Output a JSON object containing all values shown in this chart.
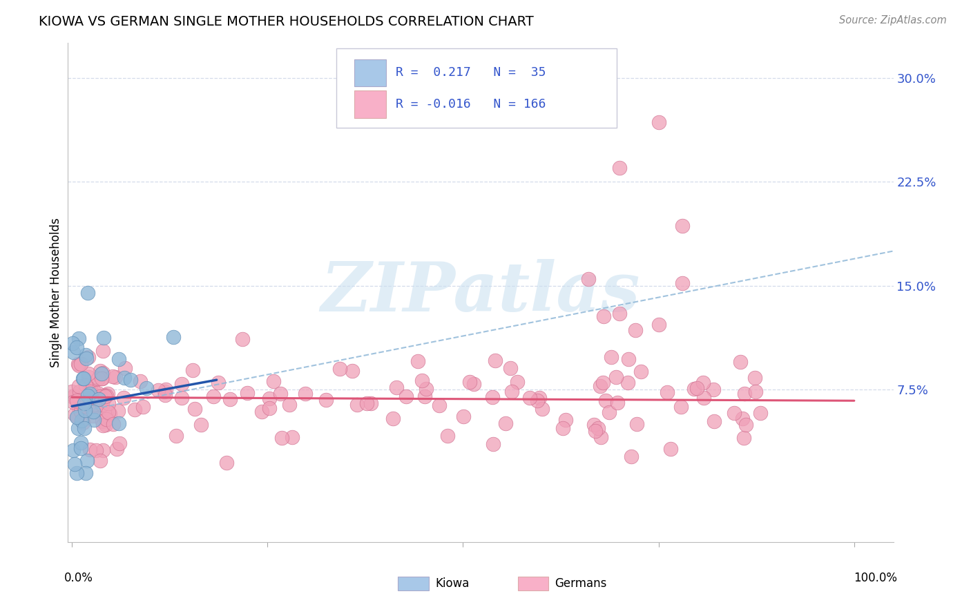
{
  "title": "KIOWA VS GERMAN SINGLE MOTHER HOUSEHOLDS CORRELATION CHART",
  "source": "Source: ZipAtlas.com",
  "ylabel": "Single Mother Households",
  "yticks": [
    0.075,
    0.15,
    0.225,
    0.3
  ],
  "ytick_labels": [
    "7.5%",
    "15.0%",
    "22.5%",
    "30.0%"
  ],
  "xlim": [
    -0.005,
    1.05
  ],
  "ylim": [
    -0.035,
    0.325
  ],
  "kiowa_R": 0.217,
  "kiowa_N": 35,
  "german_R": -0.016,
  "german_N": 166,
  "kiowa_dot_color": "#90b8d8",
  "kiowa_edge_color": "#6090b8",
  "german_dot_color": "#f0a0b8",
  "german_edge_color": "#d07090",
  "kiowa_trend_color": "#2255aa",
  "german_trend_color": "#dd5577",
  "dashed_line_color": "#90b8d8",
  "watermark_color": "#c8dff0",
  "watermark_text": "ZIPatlas",
  "background_color": "#ffffff",
  "grid_color": "#d0d8e8",
  "legend_box_color": "#f8f8ff",
  "legend_border_color": "#c8c8d8",
  "legend_text_color": "#3355cc",
  "kiowa_legend_color": "#a8c8e8",
  "german_legend_color": "#f8b0c8"
}
